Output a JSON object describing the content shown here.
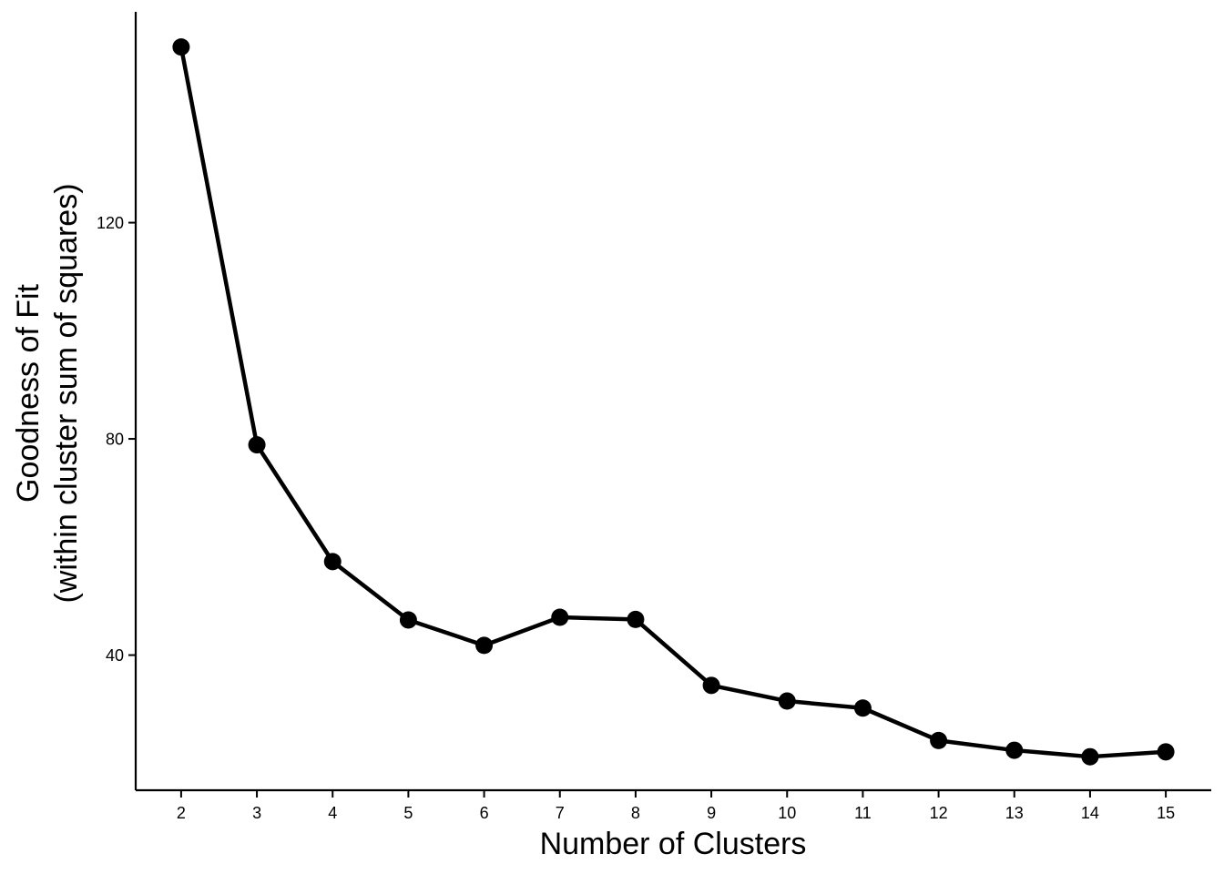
{
  "chart_data": {
    "type": "line",
    "title": "",
    "xlabel": "Number of Clusters",
    "ylabel_lines": [
      "Goodness of Fit",
      "(within cluster sum of squares)"
    ],
    "x": [
      2,
      3,
      4,
      5,
      6,
      7,
      8,
      9,
      10,
      11,
      12,
      13,
      14,
      15
    ],
    "x_tick_labels": [
      "2",
      "3",
      "4",
      "5",
      "6",
      "7",
      "8",
      "9",
      "10",
      "11",
      "12",
      "13",
      "14",
      "15"
    ],
    "series": [
      {
        "values": [
          152.5,
          78.9,
          57.3,
          46.5,
          41.8,
          47.0,
          46.6,
          34.4,
          31.5,
          30.2,
          24.2,
          22.4,
          21.2,
          22.1
        ]
      }
    ],
    "y_ticks": [
      40,
      80,
      120
    ],
    "y_tick_labels": [
      "40",
      "80",
      "120"
    ],
    "xlim": [
      1.4,
      15.6
    ],
    "ylim": [
      15,
      159
    ],
    "grid": false,
    "legend": "none",
    "line_color": "#000000",
    "point_color": "#000000"
  }
}
